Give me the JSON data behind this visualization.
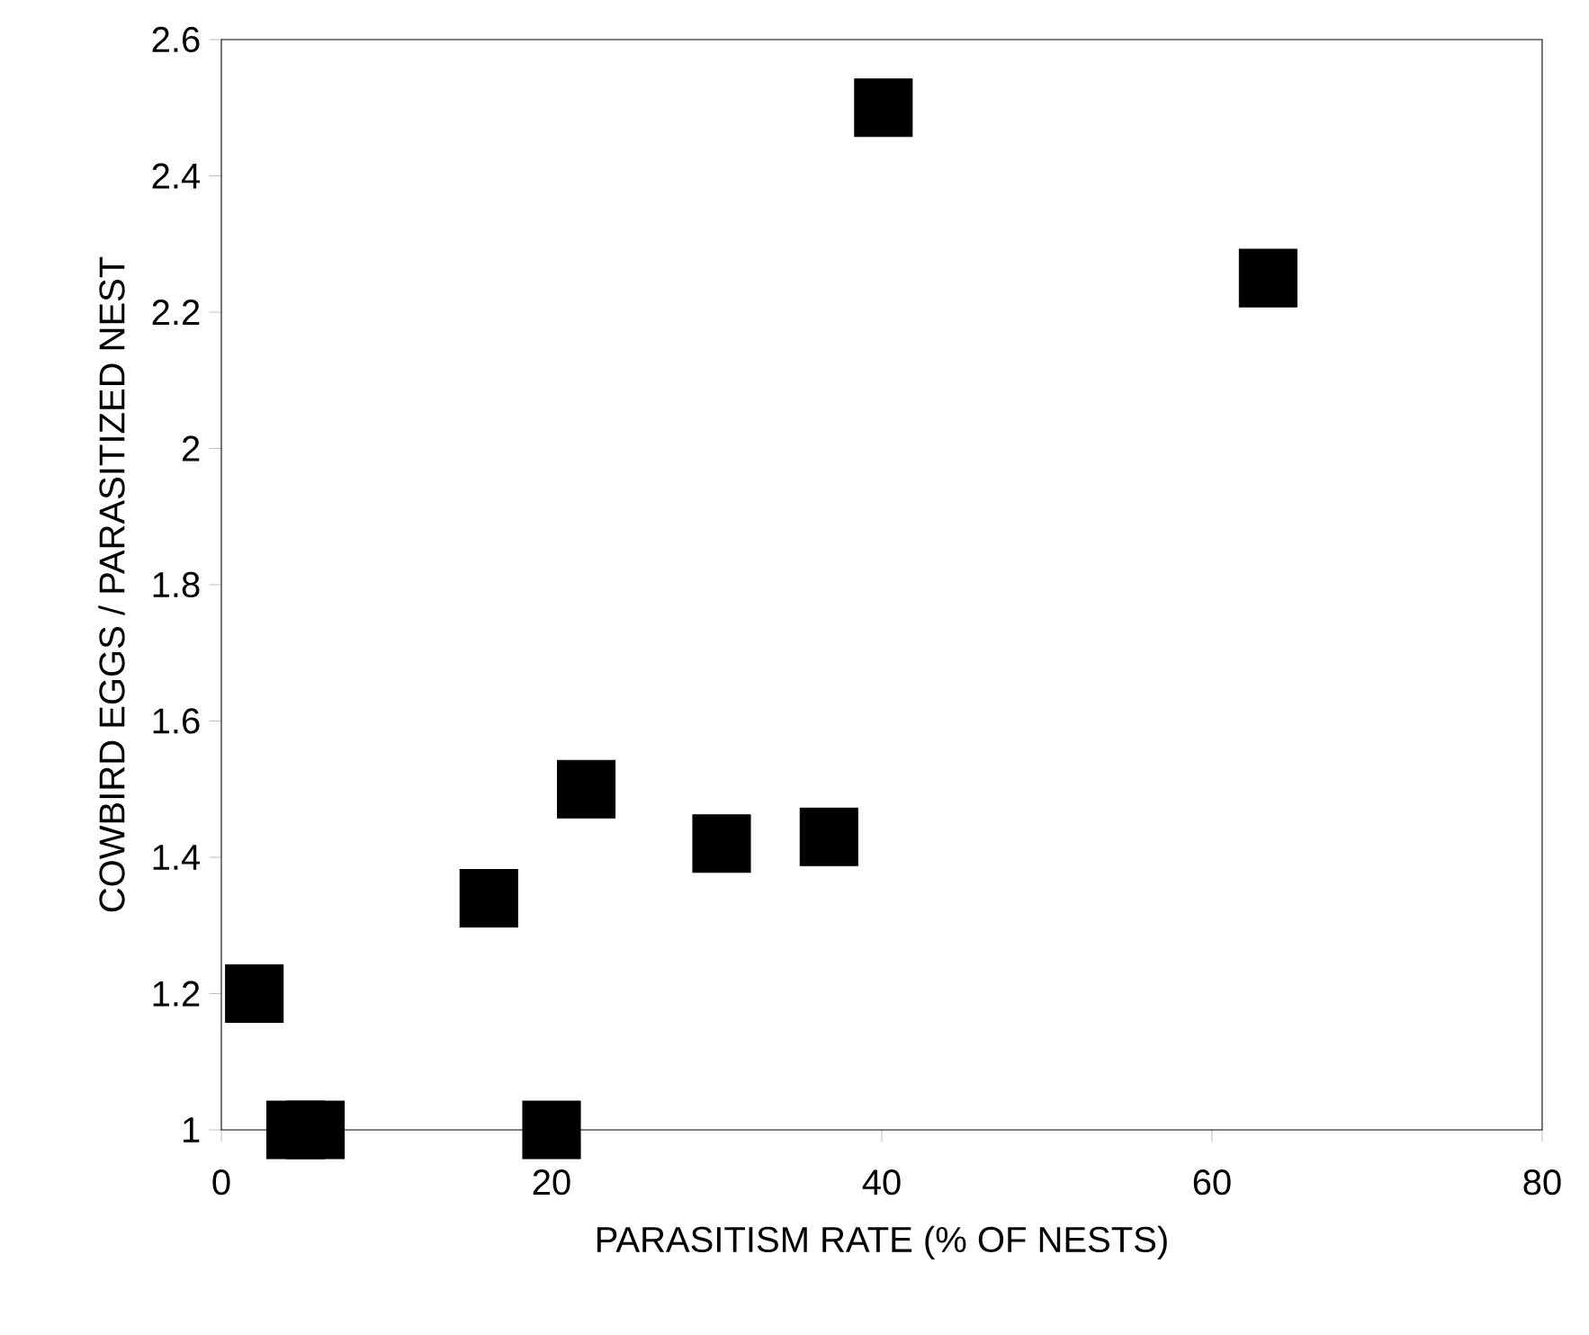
{
  "chart_data": {
    "type": "scatter",
    "xlabel": "PARASITISM RATE (% OF NESTS)",
    "ylabel": "COWBIRD EGGS / PARASITIZED NEST",
    "x": [
      2,
      4.5,
      5.7,
      20,
      16.2,
      22.1,
      30.3,
      36.8,
      40.1,
      63.4
    ],
    "series": [
      {
        "color": "#000000",
        "values": [
          1.2,
          1,
          1,
          1,
          1.34,
          1.5,
          1.42,
          1.43,
          2.5,
          2.25
        ]
      }
    ],
    "marker": "square",
    "xlim": [
      0,
      80
    ],
    "xticks": [
      0,
      20,
      40,
      60,
      80
    ],
    "ylim": [
      1,
      2.6
    ],
    "yticks": [
      1,
      1.2,
      1.4,
      1.6,
      1.8,
      2,
      2.2,
      2.4,
      2.6
    ]
  }
}
